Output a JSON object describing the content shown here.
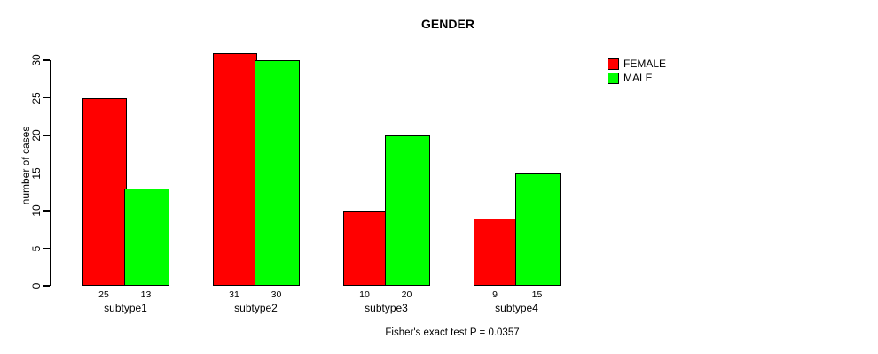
{
  "chart_data": {
    "type": "bar",
    "title": "GENDER",
    "ylabel": "number of cases",
    "xlabel": "",
    "categories": [
      "subtype1",
      "subtype2",
      "subtype3",
      "subtype4"
    ],
    "series": [
      {
        "name": "FEMALE",
        "color": "#FF0000",
        "values": [
          25,
          31,
          10,
          9
        ]
      },
      {
        "name": "MALE",
        "color": "#00FF00",
        "values": [
          13,
          30,
          20,
          15
        ]
      }
    ],
    "bar_value_labels": [
      [
        "25",
        "13"
      ],
      [
        "31",
        "30"
      ],
      [
        "10",
        "20"
      ],
      [
        "9",
        "15"
      ]
    ],
    "yticks": [
      0,
      5,
      10,
      15,
      20,
      25,
      30
    ],
    "ylim": [
      0,
      30
    ],
    "grid": false,
    "legend_position": "top-right",
    "annotation": "Fisher's exact test P = 0.0357"
  },
  "colors": {
    "female": "#FF0000",
    "male": "#00FF00",
    "axis": "#000000",
    "background": "#FFFFFF"
  }
}
